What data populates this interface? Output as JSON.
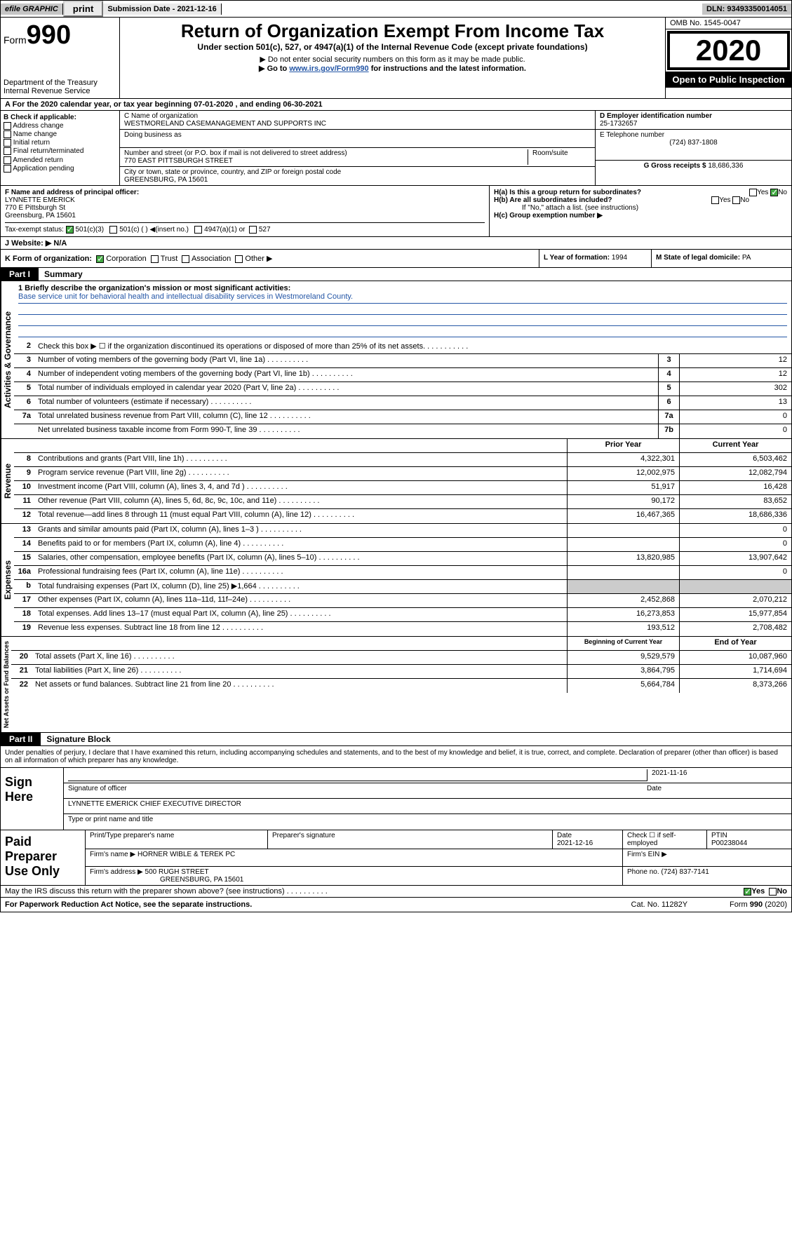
{
  "topbar": {
    "efile": "efile GRAPHIC",
    "print": "print",
    "subdate_label": "Submission Date - 2021-12-16",
    "dln": "DLN: 93493350014051"
  },
  "header": {
    "form_prefix": "Form",
    "form_num": "990",
    "dept": "Department of the Treasury\nInternal Revenue Service",
    "title": "Return of Organization Exempt From Income Tax",
    "subtitle": "Under section 501(c), 527, or 4947(a)(1) of the Internal Revenue Code (except private foundations)",
    "note1": "▶ Do not enter social security numbers on this form as it may be made public.",
    "note2_a": "▶ Go to ",
    "note2_link": "www.irs.gov/Form990",
    "note2_b": " for instructions and the latest information.",
    "omb": "OMB No. 1545-0047",
    "year": "2020",
    "inspection": "Open to Public Inspection"
  },
  "row_a": "A For the 2020 calendar year, or tax year beginning 07-01-2020    , and ending 06-30-2021",
  "col_b": {
    "title": "B Check if applicable:",
    "items": [
      "Address change",
      "Name change",
      "Initial return",
      "Final return/terminated",
      "Amended return",
      "Application pending"
    ]
  },
  "col_c": {
    "name_label": "C Name of organization",
    "name": "WESTMORELAND CASEMANAGEMENT AND SUPPORTS INC",
    "dba_label": "Doing business as",
    "addr_label": "Number and street (or P.O. box if mail is not delivered to street address)",
    "room_label": "Room/suite",
    "addr": "770 EAST PITTSBURGH STREET",
    "city_label": "City or town, state or province, country, and ZIP or foreign postal code",
    "city": "GREENSBURG, PA  15601"
  },
  "col_d": {
    "ein_label": "D Employer identification number",
    "ein": "25-1732657",
    "phone_label": "E Telephone number",
    "phone": "(724) 837-1808",
    "gross_label": "G Gross receipts $",
    "gross": "18,686,336"
  },
  "row_f": {
    "label": "F  Name and address of principal officer:",
    "name": "LYNNETTE EMERICK",
    "addr1": "770 E Pittsburgh St",
    "addr2": "Greensburg, PA  15601"
  },
  "row_h": {
    "ha": "H(a)  Is this a group return for subordinates?",
    "hb": "H(b)  Are all subordinates included?",
    "hb_note": "If \"No,\" attach a list. (see instructions)",
    "hc": "H(c)  Group exemption number ▶"
  },
  "tax_exempt": {
    "label": "Tax-exempt status:",
    "opt1": "501(c)(3)",
    "opt2": "501(c) (  ) ◀(insert no.)",
    "opt3": "4947(a)(1) or",
    "opt4": "527"
  },
  "website": {
    "label": "J   Website: ▶",
    "val": "N/A"
  },
  "row_k": "K Form of organization:",
  "k_opts": [
    "Corporation",
    "Trust",
    "Association",
    "Other ▶"
  ],
  "col_l": {
    "label": "L Year of formation:",
    "val": "1994"
  },
  "col_m": {
    "label": "M State of legal domicile:",
    "val": "PA"
  },
  "part1": {
    "hdr": "Part I",
    "title": "Summary"
  },
  "mission": {
    "label": "1  Briefly describe the organization's mission or most significant activities:",
    "text": "Base service unit for behavioral health and intellectual disability services in Westmoreland County."
  },
  "lines_gov": [
    {
      "n": "2",
      "t": "Check this box ▶ ☐ if the organization discontinued its operations or disposed of more than 25% of its net assets."
    },
    {
      "n": "3",
      "t": "Number of voting members of the governing body (Part VI, line 1a)",
      "box": "3",
      "v": "12"
    },
    {
      "n": "4",
      "t": "Number of independent voting members of the governing body (Part VI, line 1b)",
      "box": "4",
      "v": "12"
    },
    {
      "n": "5",
      "t": "Total number of individuals employed in calendar year 2020 (Part V, line 2a)",
      "box": "5",
      "v": "302"
    },
    {
      "n": "6",
      "t": "Total number of volunteers (estimate if necessary)",
      "box": "6",
      "v": "13"
    },
    {
      "n": "7a",
      "t": "Total unrelated business revenue from Part VIII, column (C), line 12",
      "box": "7a",
      "v": "0"
    },
    {
      "n": "",
      "t": "Net unrelated business taxable income from Form 990-T, line 39",
      "box": "7b",
      "v": "0"
    }
  ],
  "col_headers": {
    "prior": "Prior Year",
    "current": "Current Year"
  },
  "lines_rev": [
    {
      "n": "8",
      "t": "Contributions and grants (Part VIII, line 1h)",
      "p": "4,322,301",
      "c": "6,503,462"
    },
    {
      "n": "9",
      "t": "Program service revenue (Part VIII, line 2g)",
      "p": "12,002,975",
      "c": "12,082,794"
    },
    {
      "n": "10",
      "t": "Investment income (Part VIII, column (A), lines 3, 4, and 7d )",
      "p": "51,917",
      "c": "16,428"
    },
    {
      "n": "11",
      "t": "Other revenue (Part VIII, column (A), lines 5, 6d, 8c, 9c, 10c, and 11e)",
      "p": "90,172",
      "c": "83,652"
    },
    {
      "n": "12",
      "t": "Total revenue—add lines 8 through 11 (must equal Part VIII, column (A), line 12)",
      "p": "16,467,365",
      "c": "18,686,336"
    }
  ],
  "lines_exp": [
    {
      "n": "13",
      "t": "Grants and similar amounts paid (Part IX, column (A), lines 1–3 )",
      "p": "",
      "c": "0"
    },
    {
      "n": "14",
      "t": "Benefits paid to or for members (Part IX, column (A), line 4)",
      "p": "",
      "c": "0"
    },
    {
      "n": "15",
      "t": "Salaries, other compensation, employee benefits (Part IX, column (A), lines 5–10)",
      "p": "13,820,985",
      "c": "13,907,642"
    },
    {
      "n": "16a",
      "t": "Professional fundraising fees (Part IX, column (A), line 11e)",
      "p": "",
      "c": "0"
    },
    {
      "n": "b",
      "t": "Total fundraising expenses (Part IX, column (D), line 25) ▶1,664",
      "p": "—",
      "c": "—"
    },
    {
      "n": "17",
      "t": "Other expenses (Part IX, column (A), lines 11a–11d, 11f–24e)",
      "p": "2,452,868",
      "c": "2,070,212"
    },
    {
      "n": "18",
      "t": "Total expenses. Add lines 13–17 (must equal Part IX, column (A), line 25)",
      "p": "16,273,853",
      "c": "15,977,854"
    },
    {
      "n": "19",
      "t": "Revenue less expenses. Subtract line 18 from line 12",
      "p": "193,512",
      "c": "2,708,482"
    }
  ],
  "col_headers2": {
    "begin": "Beginning of Current Year",
    "end": "End of Year"
  },
  "lines_net": [
    {
      "n": "20",
      "t": "Total assets (Part X, line 16)",
      "p": "9,529,579",
      "c": "10,087,960"
    },
    {
      "n": "21",
      "t": "Total liabilities (Part X, line 26)",
      "p": "3,864,795",
      "c": "1,714,694"
    },
    {
      "n": "22",
      "t": "Net assets or fund balances. Subtract line 21 from line 20",
      "p": "5,664,784",
      "c": "8,373,266"
    }
  ],
  "verts": {
    "gov": "Activities & Governance",
    "rev": "Revenue",
    "exp": "Expenses",
    "net": "Net Assets or Fund Balances"
  },
  "part2": {
    "hdr": "Part II",
    "title": "Signature Block"
  },
  "perjury": "Under penalties of perjury, I declare that I have examined this return, including accompanying schedules and statements, and to the best of my knowledge and belief, it is true, correct, and complete. Declaration of preparer (other than officer) is based on all information of which preparer has any knowledge.",
  "sign": {
    "left": "Sign Here",
    "sig_label": "Signature of officer",
    "date": "2021-11-16",
    "date_label": "Date",
    "name": "LYNNETTE EMERICK  CHIEF EXECUTIVE DIRECTOR",
    "name_label": "Type or print name and title"
  },
  "prep": {
    "left": "Paid Preparer Use Only",
    "h1": "Print/Type preparer's name",
    "h2": "Preparer's signature",
    "h3": "Date",
    "h3v": "2021-12-16",
    "h4": "Check ☐ if self-employed",
    "h5": "PTIN",
    "h5v": "P00238044",
    "firm_label": "Firm's name     ▶",
    "firm": "HORNER WIBLE & TEREK PC",
    "ein_label": "Firm's EIN ▶",
    "addr_label": "Firm's address ▶",
    "addr": "500 RUGH STREET",
    "addr2": "GREENSBURG, PA  15601",
    "phone_label": "Phone no.",
    "phone": "(724) 837-7141"
  },
  "discuss": "May the IRS discuss this return with the preparer shown above? (see instructions)",
  "footer": {
    "pra": "For Paperwork Reduction Act Notice, see the separate instructions.",
    "cat": "Cat. No. 11282Y",
    "form": "Form 990 (2020)"
  },
  "yn": {
    "yes": "Yes",
    "no": "No"
  },
  "colors": {
    "link": "#2456a6",
    "check": "#44aa44"
  }
}
